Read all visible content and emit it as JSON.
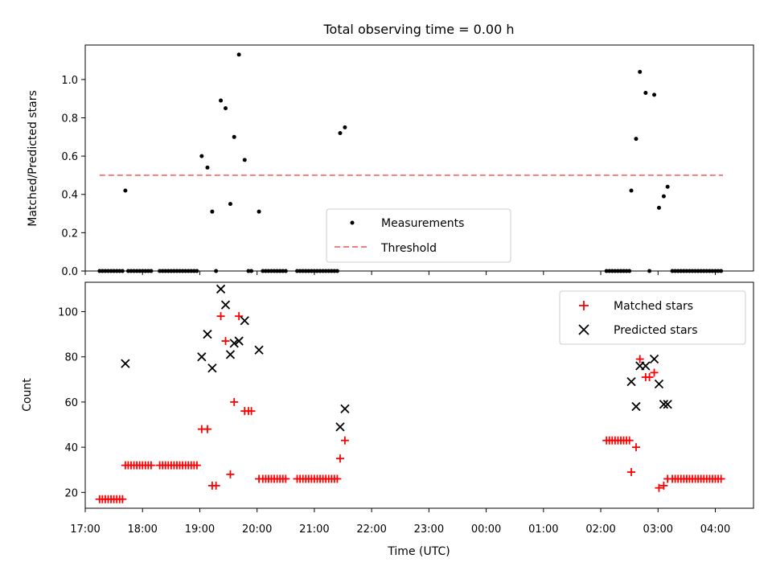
{
  "chart_data": [
    {
      "type": "scatter",
      "title": "Total observing time = 0.00 h",
      "ylabel": "Matched/Predicted stars",
      "xlabel": "",
      "x_axis": "time",
      "xlim": [
        "17:00",
        "04:40"
      ],
      "ylim": [
        0,
        1.18
      ],
      "yticks": [
        "0.0",
        "0.2",
        "0.4",
        "0.6",
        "0.8",
        "1.0"
      ],
      "grid": false,
      "legend_position": "bottom-center",
      "series": [
        {
          "name": "Measurements",
          "marker": "dot",
          "color": "#000000",
          "points": [
            [
              "17:15",
              0
            ],
            [
              "17:18",
              0
            ],
            [
              "17:21",
              0
            ],
            [
              "17:24",
              0
            ],
            [
              "17:27",
              0
            ],
            [
              "17:30",
              0
            ],
            [
              "17:33",
              0
            ],
            [
              "17:36",
              0
            ],
            [
              "17:39",
              0
            ],
            [
              "17:42",
              0.42
            ],
            [
              "17:45",
              0
            ],
            [
              "17:48",
              0
            ],
            [
              "17:51",
              0
            ],
            [
              "17:54",
              0
            ],
            [
              "17:57",
              0
            ],
            [
              "18:00",
              0
            ],
            [
              "18:03",
              0
            ],
            [
              "18:06",
              0
            ],
            [
              "18:09",
              0
            ],
            [
              "18:18",
              0
            ],
            [
              "18:21",
              0
            ],
            [
              "18:24",
              0
            ],
            [
              "18:27",
              0
            ],
            [
              "18:30",
              0
            ],
            [
              "18:33",
              0
            ],
            [
              "18:36",
              0
            ],
            [
              "18:39",
              0
            ],
            [
              "18:42",
              0
            ],
            [
              "18:45",
              0
            ],
            [
              "18:48",
              0
            ],
            [
              "18:51",
              0
            ],
            [
              "18:54",
              0
            ],
            [
              "18:57",
              0
            ],
            [
              "19:02",
              0.6
            ],
            [
              "19:08",
              0.54
            ],
            [
              "19:13",
              0.31
            ],
            [
              "19:17",
              0
            ],
            [
              "19:22",
              0.89
            ],
            [
              "19:27",
              0.85
            ],
            [
              "19:32",
              0.35
            ],
            [
              "19:36",
              0.7
            ],
            [
              "19:41",
              1.13
            ],
            [
              "19:47",
              0.58
            ],
            [
              "19:51",
              0
            ],
            [
              "19:54",
              0
            ],
            [
              "20:02",
              0.31
            ],
            [
              "20:06",
              0
            ],
            [
              "20:09",
              0
            ],
            [
              "20:12",
              0
            ],
            [
              "20:15",
              0
            ],
            [
              "20:18",
              0
            ],
            [
              "20:21",
              0
            ],
            [
              "20:24",
              0
            ],
            [
              "20:27",
              0
            ],
            [
              "20:30",
              0
            ],
            [
              "20:42",
              0
            ],
            [
              "20:45",
              0
            ],
            [
              "20:48",
              0
            ],
            [
              "20:51",
              0
            ],
            [
              "20:54",
              0
            ],
            [
              "20:57",
              0
            ],
            [
              "21:00",
              0
            ],
            [
              "21:03",
              0
            ],
            [
              "21:06",
              0
            ],
            [
              "21:09",
              0
            ],
            [
              "21:12",
              0
            ],
            [
              "21:15",
              0
            ],
            [
              "21:18",
              0
            ],
            [
              "21:21",
              0
            ],
            [
              "21:24",
              0
            ],
            [
              "21:27",
              0.72
            ],
            [
              "21:32",
              0.75
            ],
            [
              "02:06",
              0
            ],
            [
              "02:09",
              0
            ],
            [
              "02:12",
              0
            ],
            [
              "02:15",
              0
            ],
            [
              "02:18",
              0
            ],
            [
              "02:21",
              0
            ],
            [
              "02:24",
              0
            ],
            [
              "02:27",
              0
            ],
            [
              "02:30",
              0
            ],
            [
              "02:32",
              0.42
            ],
            [
              "02:37",
              0.69
            ],
            [
              "02:41",
              1.04
            ],
            [
              "02:47",
              0.93
            ],
            [
              "02:51",
              0
            ],
            [
              "02:56",
              0.92
            ],
            [
              "03:01",
              0.33
            ],
            [
              "03:06",
              0.39
            ],
            [
              "03:10",
              0.44
            ],
            [
              "03:15",
              0
            ],
            [
              "03:18",
              0
            ],
            [
              "03:21",
              0
            ],
            [
              "03:24",
              0
            ],
            [
              "03:27",
              0
            ],
            [
              "03:30",
              0
            ],
            [
              "03:33",
              0
            ],
            [
              "03:36",
              0
            ],
            [
              "03:39",
              0
            ],
            [
              "03:42",
              0
            ],
            [
              "03:45",
              0
            ],
            [
              "03:48",
              0
            ],
            [
              "03:51",
              0
            ],
            [
              "03:54",
              0
            ],
            [
              "03:57",
              0
            ],
            [
              "04:00",
              0
            ],
            [
              "04:03",
              0
            ],
            [
              "04:06",
              0
            ]
          ]
        },
        {
          "name": "Threshold",
          "kind": "hline",
          "style": "dashed",
          "color": "#f08080",
          "y": 0.5,
          "x_range": [
            "17:15",
            "04:08"
          ]
        }
      ]
    },
    {
      "type": "scatter",
      "title": "",
      "ylabel": "Count",
      "xlabel": "Time (UTC)",
      "x_axis": "time",
      "xlim": [
        "17:00",
        "04:40"
      ],
      "ylim": [
        13,
        113
      ],
      "yticks": [
        "20",
        "40",
        "60",
        "80",
        "100"
      ],
      "xticks": [
        "17:00",
        "18:00",
        "19:00",
        "20:00",
        "21:00",
        "22:00",
        "23:00",
        "00:00",
        "01:00",
        "02:00",
        "03:00",
        "04:00"
      ],
      "grid": false,
      "legend_position": "top-right",
      "series": [
        {
          "name": "Matched stars",
          "marker": "plus",
          "color": "#ff0000",
          "points": [
            [
              "17:15",
              17
            ],
            [
              "17:18",
              17
            ],
            [
              "17:21",
              17
            ],
            [
              "17:24",
              17
            ],
            [
              "17:27",
              17
            ],
            [
              "17:30",
              17
            ],
            [
              "17:33",
              17
            ],
            [
              "17:36",
              17
            ],
            [
              "17:39",
              17
            ],
            [
              "17:42",
              32
            ],
            [
              "17:45",
              32
            ],
            [
              "17:48",
              32
            ],
            [
              "17:51",
              32
            ],
            [
              "17:54",
              32
            ],
            [
              "17:57",
              32
            ],
            [
              "18:00",
              32
            ],
            [
              "18:03",
              32
            ],
            [
              "18:06",
              32
            ],
            [
              "18:09",
              32
            ],
            [
              "18:18",
              32
            ],
            [
              "18:21",
              32
            ],
            [
              "18:24",
              32
            ],
            [
              "18:27",
              32
            ],
            [
              "18:30",
              32
            ],
            [
              "18:33",
              32
            ],
            [
              "18:36",
              32
            ],
            [
              "18:39",
              32
            ],
            [
              "18:42",
              32
            ],
            [
              "18:45",
              32
            ],
            [
              "18:48",
              32
            ],
            [
              "18:51",
              32
            ],
            [
              "18:54",
              32
            ],
            [
              "18:57",
              32
            ],
            [
              "19:02",
              48
            ],
            [
              "19:08",
              48
            ],
            [
              "19:13",
              23
            ],
            [
              "19:17",
              23
            ],
            [
              "19:22",
              98
            ],
            [
              "19:27",
              87
            ],
            [
              "19:32",
              28
            ],
            [
              "19:36",
              60
            ],
            [
              "19:41",
              98
            ],
            [
              "19:47",
              56
            ],
            [
              "19:51",
              56
            ],
            [
              "19:54",
              56
            ],
            [
              "20:02",
              26
            ],
            [
              "20:06",
              26
            ],
            [
              "20:09",
              26
            ],
            [
              "20:12",
              26
            ],
            [
              "20:15",
              26
            ],
            [
              "20:18",
              26
            ],
            [
              "20:21",
              26
            ],
            [
              "20:24",
              26
            ],
            [
              "20:27",
              26
            ],
            [
              "20:30",
              26
            ],
            [
              "20:42",
              26
            ],
            [
              "20:45",
              26
            ],
            [
              "20:48",
              26
            ],
            [
              "20:51",
              26
            ],
            [
              "20:54",
              26
            ],
            [
              "20:57",
              26
            ],
            [
              "21:00",
              26
            ],
            [
              "21:03",
              26
            ],
            [
              "21:06",
              26
            ],
            [
              "21:09",
              26
            ],
            [
              "21:12",
              26
            ],
            [
              "21:15",
              26
            ],
            [
              "21:18",
              26
            ],
            [
              "21:21",
              26
            ],
            [
              "21:24",
              26
            ],
            [
              "21:27",
              35
            ],
            [
              "21:32",
              43
            ],
            [
              "02:06",
              43
            ],
            [
              "02:09",
              43
            ],
            [
              "02:12",
              43
            ],
            [
              "02:15",
              43
            ],
            [
              "02:18",
              43
            ],
            [
              "02:21",
              43
            ],
            [
              "02:24",
              43
            ],
            [
              "02:27",
              43
            ],
            [
              "02:30",
              43
            ],
            [
              "02:32",
              29
            ],
            [
              "02:37",
              40
            ],
            [
              "02:41",
              79
            ],
            [
              "02:47",
              71
            ],
            [
              "02:51",
              71
            ],
            [
              "02:56",
              73
            ],
            [
              "03:01",
              22
            ],
            [
              "03:06",
              23
            ],
            [
              "03:10",
              26
            ],
            [
              "03:15",
              26
            ],
            [
              "03:18",
              26
            ],
            [
              "03:21",
              26
            ],
            [
              "03:24",
              26
            ],
            [
              "03:27",
              26
            ],
            [
              "03:30",
              26
            ],
            [
              "03:33",
              26
            ],
            [
              "03:36",
              26
            ],
            [
              "03:39",
              26
            ],
            [
              "03:42",
              26
            ],
            [
              "03:45",
              26
            ],
            [
              "03:48",
              26
            ],
            [
              "03:51",
              26
            ],
            [
              "03:54",
              26
            ],
            [
              "03:57",
              26
            ],
            [
              "04:00",
              26
            ],
            [
              "04:03",
              26
            ],
            [
              "04:06",
              26
            ]
          ]
        },
        {
          "name": "Predicted stars",
          "marker": "x",
          "color": "#000000",
          "points": [
            [
              "17:42",
              77
            ],
            [
              "19:02",
              80
            ],
            [
              "19:08",
              90
            ],
            [
              "19:13",
              75
            ],
            [
              "19:22",
              110
            ],
            [
              "19:27",
              103
            ],
            [
              "19:32",
              81
            ],
            [
              "19:36",
              86
            ],
            [
              "19:41",
              87
            ],
            [
              "19:47",
              96
            ],
            [
              "20:02",
              83
            ],
            [
              "21:27",
              49
            ],
            [
              "21:32",
              57
            ],
            [
              "02:32",
              69
            ],
            [
              "02:37",
              58
            ],
            [
              "02:41",
              76
            ],
            [
              "02:47",
              76
            ],
            [
              "02:56",
              79
            ],
            [
              "03:01",
              68
            ],
            [
              "03:06",
              59
            ],
            [
              "03:10",
              59
            ]
          ]
        }
      ]
    }
  ]
}
